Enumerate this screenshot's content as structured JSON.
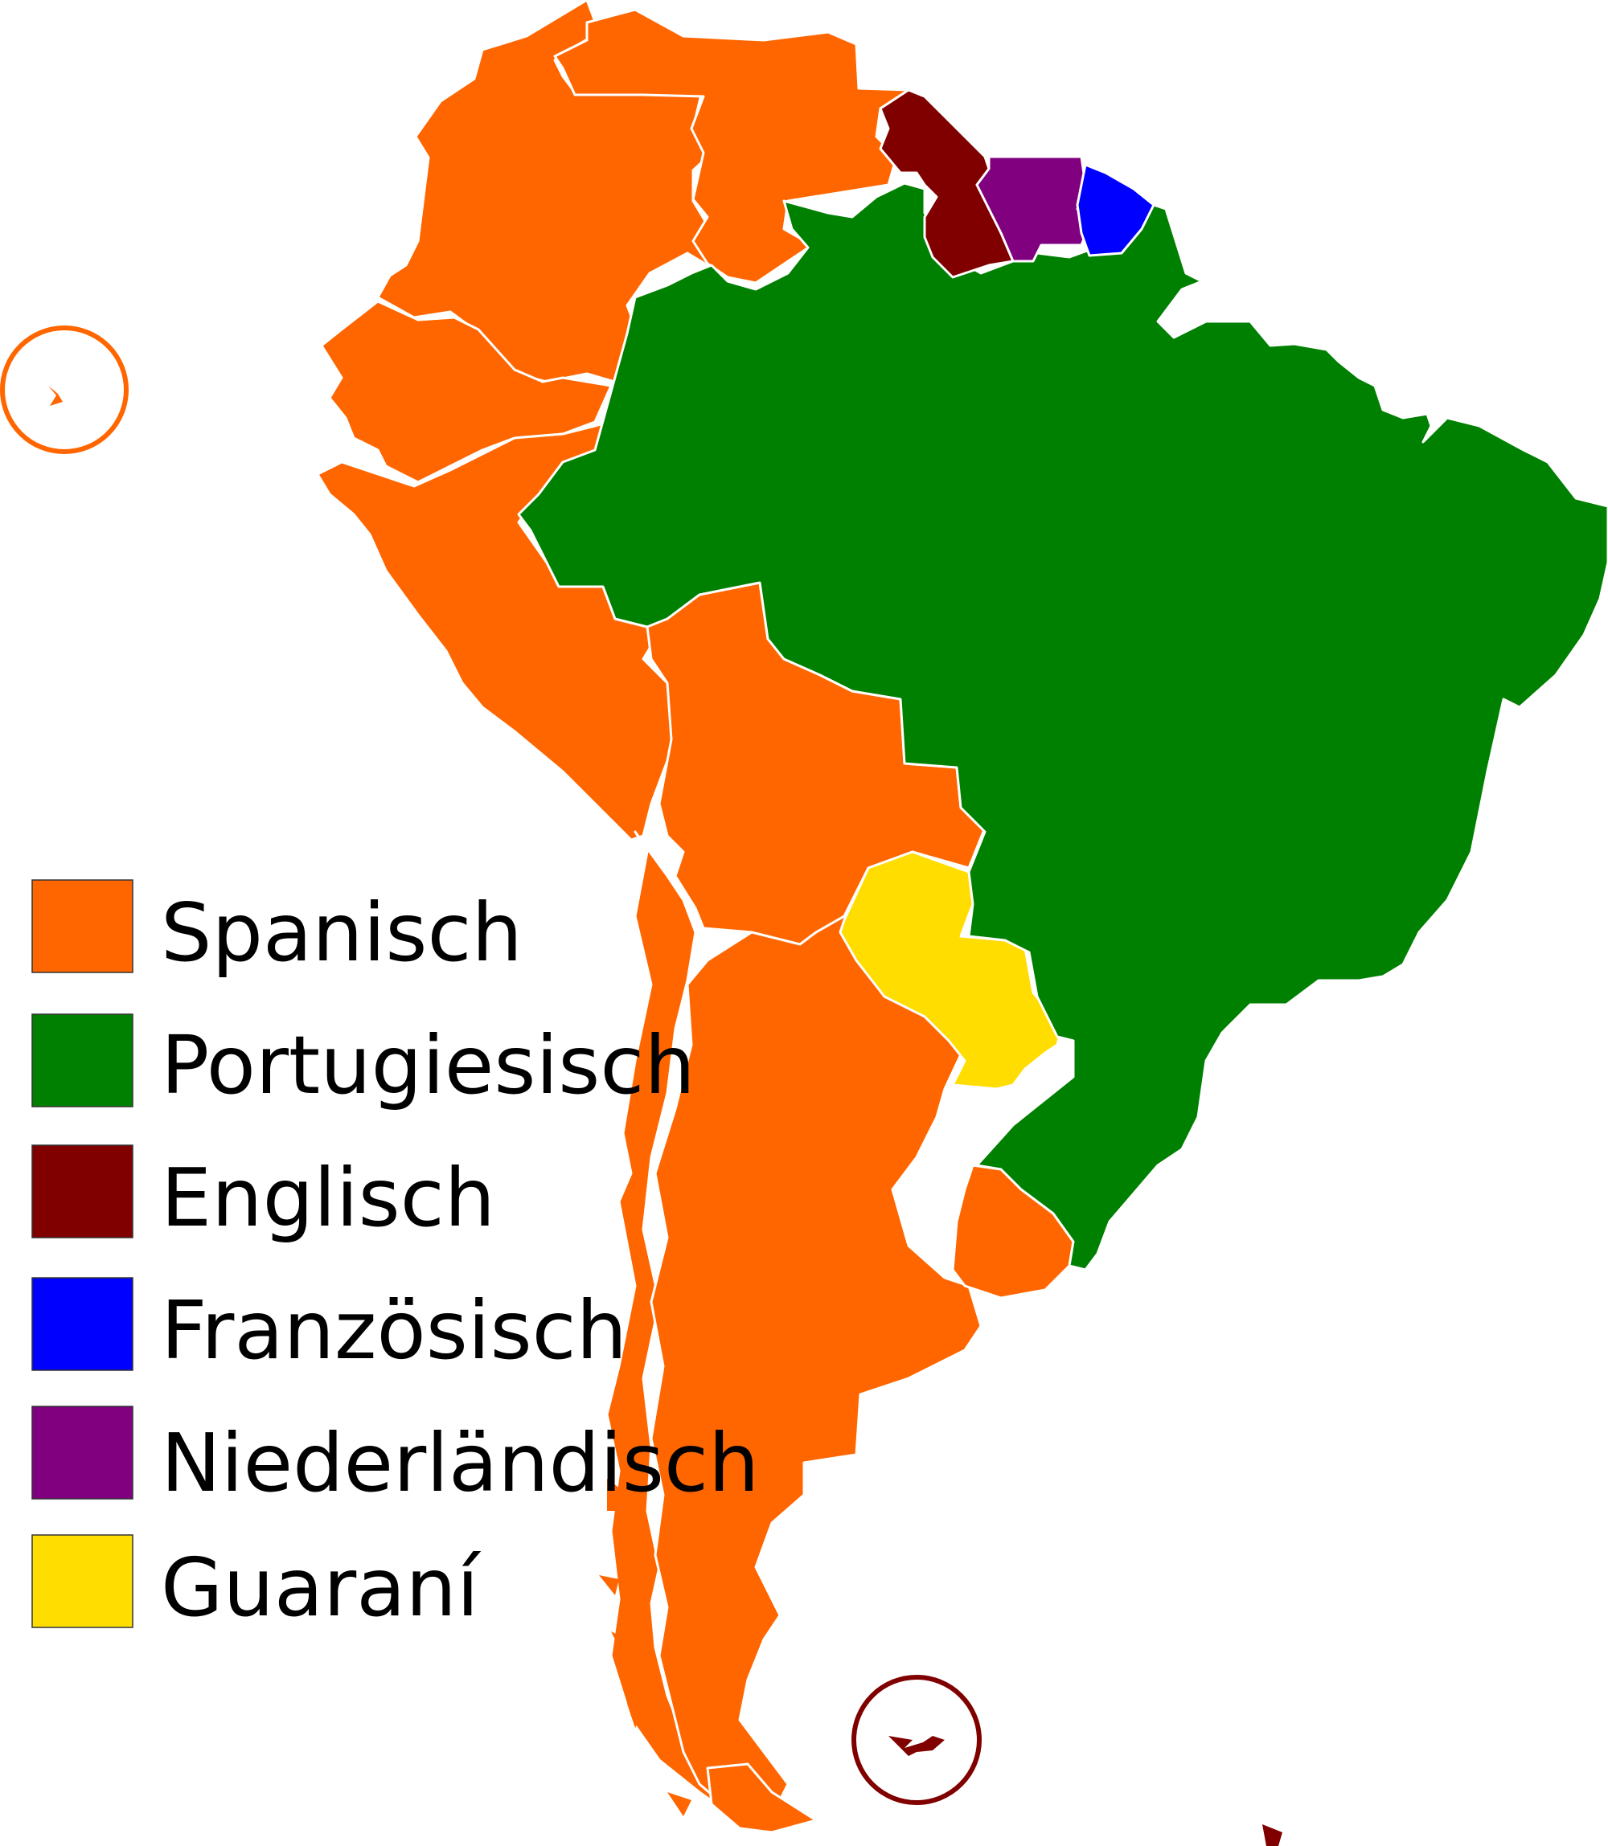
{
  "colors": {
    "spanish": "#ff6600",
    "portuguese": "#008000",
    "english": "#800000",
    "french": "#0000ff",
    "dutch": "#800080",
    "guarani": "#ffdd00",
    "border": "#ffffff"
  },
  "legend": {
    "items": [
      {
        "label": "Spanisch",
        "color": "#ff6600"
      },
      {
        "label": "Portugiesisch",
        "color": "#008000"
      },
      {
        "label": "Englisch",
        "color": "#800000"
      },
      {
        "label": "Französisch",
        "color": "#0000ff"
      },
      {
        "label": "Niederländisch",
        "color": "#800080"
      },
      {
        "label": "Guaraní",
        "color": "#ffdd00"
      }
    ]
  },
  "markers": {
    "galapagos": {
      "color": "#ff6600"
    },
    "falklands": {
      "color": "#800000"
    }
  }
}
